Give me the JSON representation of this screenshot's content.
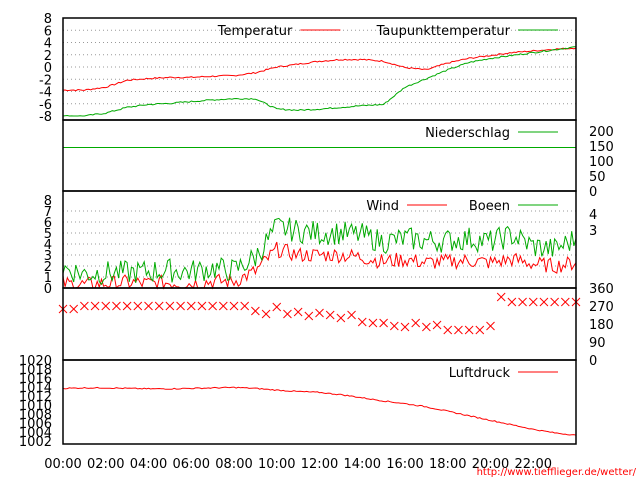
{
  "credit": "http://www.tiefflieger.de/wetter/",
  "x_ticks": [
    "00:00",
    "02:00",
    "04:00",
    "06:00",
    "08:00",
    "10:00",
    "12:00",
    "14:00",
    "16:00",
    "18:00",
    "20:00",
    "22:00"
  ],
  "chart_data": [
    {
      "type": "line",
      "x_range": [
        0,
        24
      ],
      "ylim": [
        -9,
        8
      ],
      "yticks": [
        "8",
        "6",
        "4",
        "2",
        "0",
        "-2",
        "-4",
        "-6",
        "-8"
      ],
      "grid": true,
      "legend_placement": "top",
      "series": [
        {
          "name": "Temperatur",
          "color": "#ff0000",
          "x": [
            0,
            1,
            2,
            3,
            4,
            5,
            6,
            7,
            8,
            9,
            10,
            11,
            12,
            13,
            14,
            15,
            16,
            17,
            18,
            19,
            20,
            21,
            22,
            23,
            24
          ],
          "values": [
            -4.5,
            -4.5,
            -4,
            -2.8,
            -2.5,
            -2.3,
            -2.3,
            -2.1,
            -2,
            -1.5,
            -0.5,
            0,
            0.5,
            0.8,
            0.8,
            0.5,
            -0.6,
            -1,
            0.2,
            1,
            1.5,
            2,
            2.3,
            2.6,
            2.8
          ]
        },
        {
          "name": "Taupunkttemperatur",
          "color": "#00aa00",
          "x": [
            0,
            1,
            2,
            3,
            4,
            5,
            6,
            7,
            8,
            9,
            10,
            11,
            12,
            13,
            14,
            15,
            16,
            17,
            18,
            19,
            20,
            21,
            22,
            23,
            24
          ],
          "values": [
            -9,
            -9,
            -8.5,
            -7.5,
            -7,
            -6.8,
            -6.5,
            -6.2,
            -6,
            -6,
            -7.8,
            -8,
            -7.8,
            -7.5,
            -7.2,
            -7,
            -4,
            -2.5,
            -1,
            0.3,
            1,
            1.5,
            2,
            2.5,
            3
          ]
        }
      ]
    },
    {
      "type": "line",
      "x_range": [
        0,
        24
      ],
      "ylim": [
        0,
        200
      ],
      "yticks": [
        "200",
        "150",
        "100",
        "50",
        "0"
      ],
      "grid": false,
      "legend_placement": "top-right",
      "series": [
        {
          "name": "Niederschlag",
          "color": "#00aa00",
          "x": [
            0,
            24
          ],
          "values": [
            145,
            145
          ]
        }
      ]
    },
    {
      "type": "line",
      "x_range": [
        0,
        24
      ],
      "ylim": [
        0,
        8
      ],
      "yticks": [
        "8",
        "7",
        "6",
        "5",
        "4",
        "3",
        "2",
        "1",
        "0"
      ],
      "yticks_right": [
        "4",
        "3"
      ],
      "grid": true,
      "legend_placement": "top",
      "series": [
        {
          "name": "Wind",
          "color": "#ff0000",
          "x": [
            0,
            1,
            2,
            3,
            4,
            5,
            6,
            7,
            8,
            9,
            10,
            11,
            12,
            13,
            14,
            15,
            16,
            17,
            18,
            19,
            20,
            21,
            22,
            23,
            24
          ],
          "values": [
            0.4,
            0.3,
            0.4,
            0.5,
            0.4,
            0.5,
            0.4,
            0.6,
            0.6,
            1.5,
            3.5,
            3.0,
            3.0,
            3.0,
            2.8,
            2.4,
            2.6,
            2.3,
            2.4,
            2.5,
            2.3,
            2.6,
            2.2,
            2.0,
            2.3
          ]
        },
        {
          "name": "Boeen",
          "color": "#00aa00",
          "x": [
            0,
            1,
            2,
            3,
            4,
            5,
            6,
            7,
            8,
            9,
            10,
            11,
            12,
            13,
            14,
            15,
            16,
            17,
            18,
            19,
            20,
            21,
            22,
            23,
            24
          ],
          "values": [
            1.8,
            1.3,
            1.4,
            1.4,
            1.5,
            1.6,
            1.5,
            1.8,
            1.6,
            2.8,
            5.5,
            5.2,
            5.0,
            5.0,
            4.8,
            4.2,
            4.5,
            4.3,
            4.3,
            4.5,
            4.2,
            4.8,
            3.8,
            3.5,
            4.5
          ]
        }
      ]
    },
    {
      "type": "scatter",
      "x_range": [
        0,
        24
      ],
      "ylim": [
        0,
        360
      ],
      "yticks": [
        "360",
        "270",
        "180",
        "90",
        "0"
      ],
      "grid": false,
      "series": [
        {
          "color": "#ff0000",
          "x": [
            0,
            0.5,
            1,
            1.5,
            2,
            2.5,
            3,
            3.5,
            4,
            4.5,
            5,
            5.5,
            6,
            6.5,
            7,
            7.5,
            8,
            8.5,
            9,
            9.5,
            10,
            10.5,
            11,
            11.5,
            12,
            12.5,
            13,
            13.5,
            14,
            14.5,
            15,
            15.5,
            16,
            16.5,
            17,
            17.5,
            18,
            18.5,
            19,
            19.5,
            20,
            20.5,
            21,
            21.5,
            22,
            22.5,
            23,
            23.5,
            24
          ],
          "values": [
            255,
            255,
            270,
            270,
            270,
            270,
            270,
            270,
            270,
            270,
            270,
            270,
            270,
            270,
            270,
            270,
            270,
            270,
            245,
            230,
            265,
            230,
            240,
            220,
            235,
            225,
            210,
            225,
            190,
            185,
            185,
            170,
            165,
            185,
            165,
            175,
            150,
            150,
            150,
            150,
            170,
            315,
            290,
            290,
            290,
            290,
            290,
            290,
            290
          ]
        }
      ]
    },
    {
      "type": "line",
      "x_range": [
        0,
        24
      ],
      "ylim": [
        1002,
        1020
      ],
      "yticks": [
        "1020",
        "1018",
        "1016",
        "1014",
        "1012",
        "1010",
        "1008",
        "1006",
        "1004",
        "1002"
      ],
      "grid": false,
      "legend_placement": "top-right",
      "series": [
        {
          "name": "Luftdruck",
          "color": "#ff0000",
          "x": [
            0,
            1,
            2,
            3,
            4,
            5,
            6,
            7,
            8,
            9,
            10,
            11,
            12,
            13,
            14,
            15,
            16,
            17,
            18,
            19,
            20,
            21,
            22,
            23,
            24
          ],
          "values": [
            1013.7,
            1013.8,
            1013.8,
            1013.7,
            1013.6,
            1013.6,
            1013.7,
            1013.8,
            1013.9,
            1013.7,
            1013.3,
            1013,
            1012.8,
            1012.3,
            1011.6,
            1010.9,
            1010.3,
            1009.6,
            1008.6,
            1007.6,
            1006.6,
            1005.6,
            1004.6,
            1003.8,
            1003.3
          ]
        }
      ]
    }
  ]
}
